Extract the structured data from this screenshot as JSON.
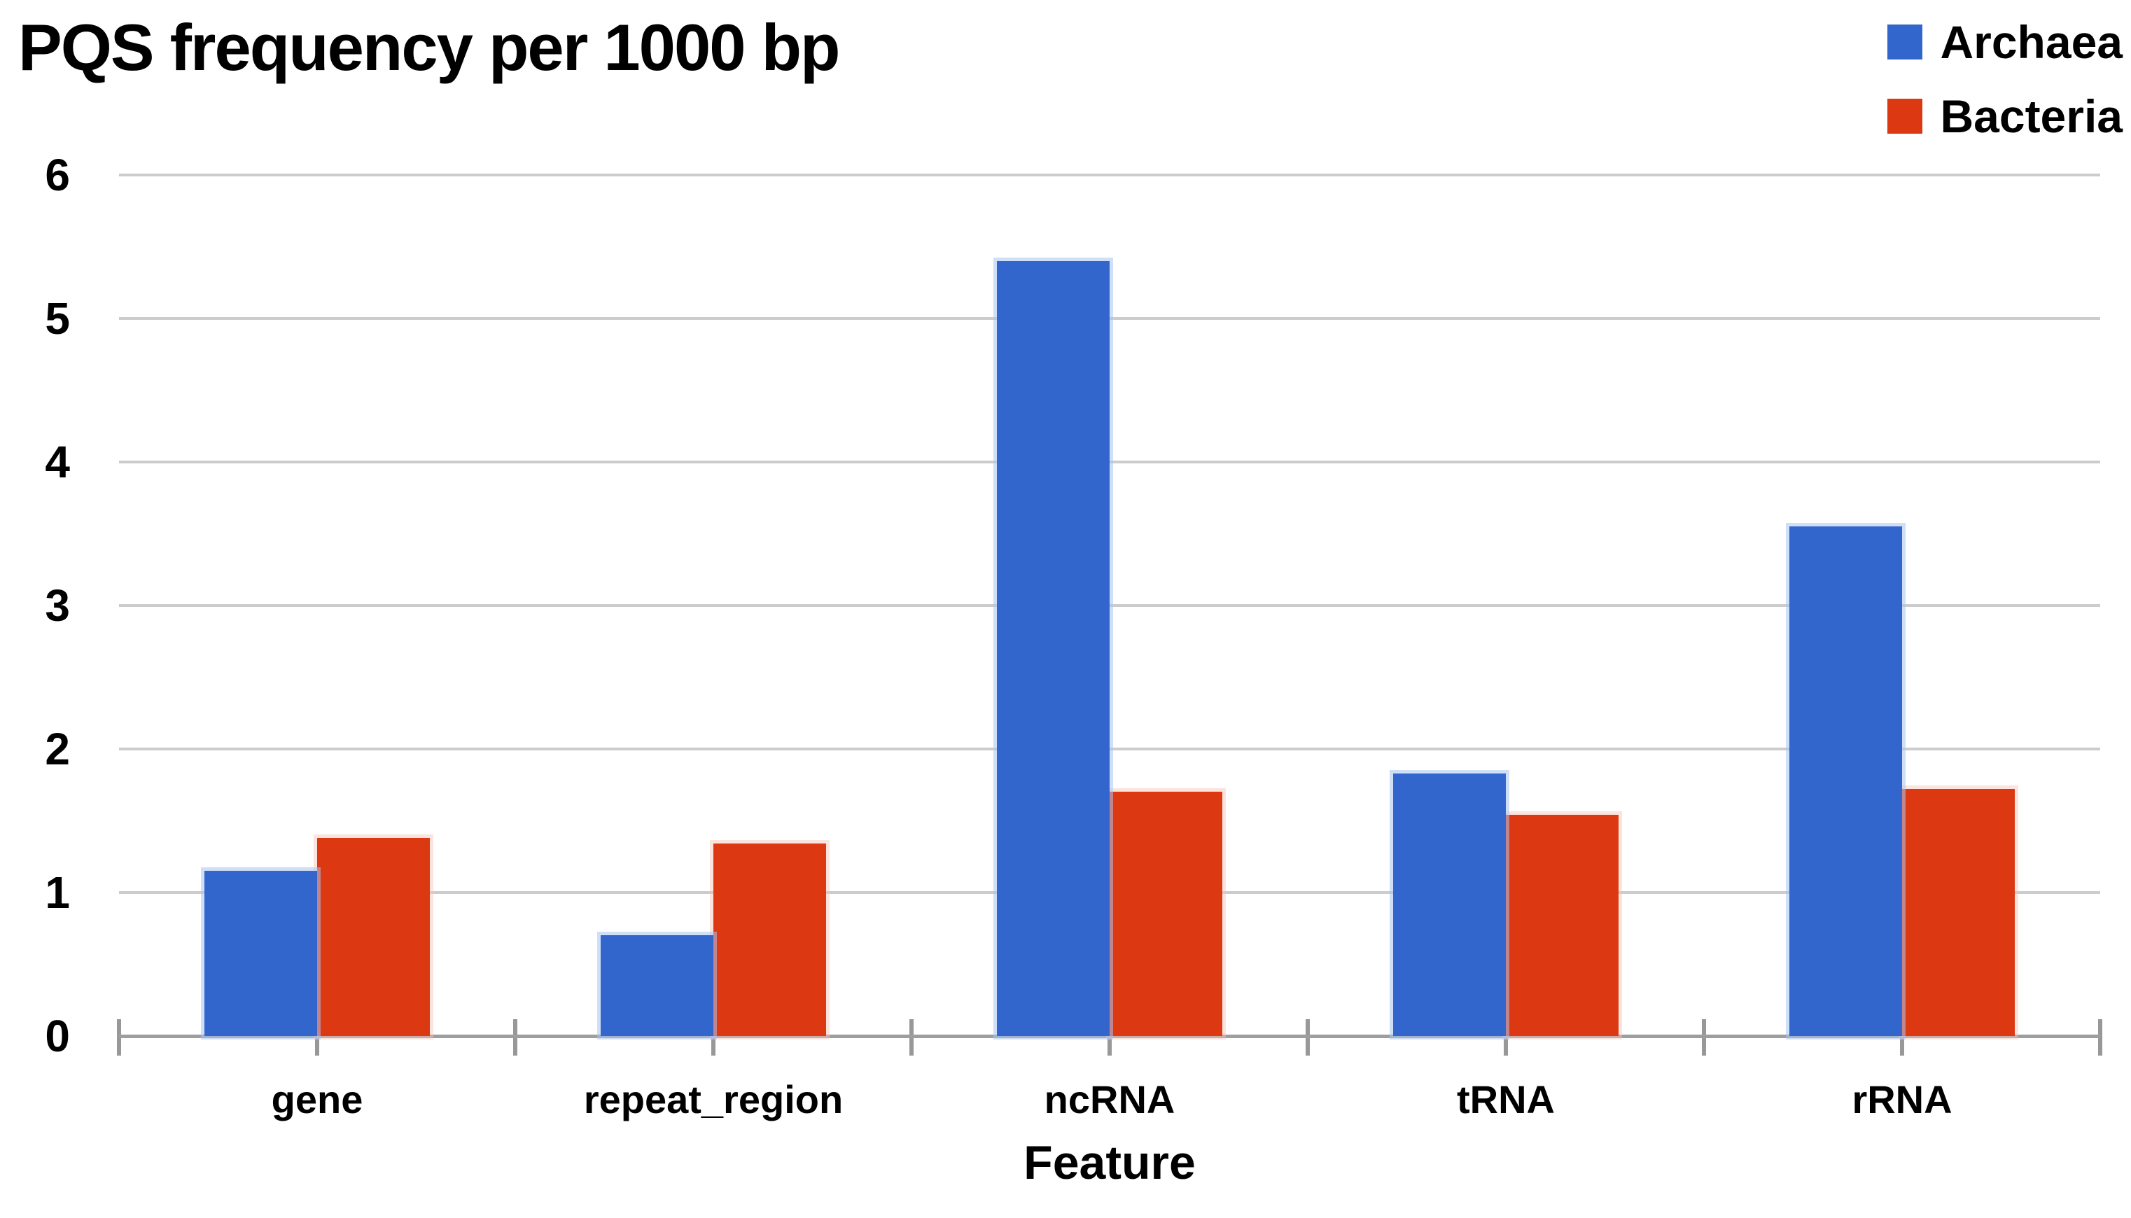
{
  "chart_data": {
    "type": "bar",
    "title": "PQS frequency per 1000 bp",
    "xlabel": "Feature",
    "ylabel": "",
    "categories": [
      "gene",
      "repeat_region",
      "ncRNA",
      "tRNA",
      "rRNA"
    ],
    "series": [
      {
        "name": "Archaea",
        "color": "#3366cc",
        "values": [
          1.15,
          0.7,
          5.4,
          1.83,
          3.55
        ]
      },
      {
        "name": "Bacteria",
        "color": "#dc3912",
        "values": [
          1.38,
          1.34,
          1.7,
          1.54,
          1.72
        ]
      }
    ],
    "ylim": [
      0,
      6
    ],
    "y_ticks": [
      "0",
      "1",
      "2",
      "3",
      "4",
      "5",
      "6"
    ],
    "grid": true,
    "legend_position": "top-right",
    "gridline_color": "#cccccc",
    "axis_color": "#9e9e9e",
    "text_color": "#000000"
  }
}
